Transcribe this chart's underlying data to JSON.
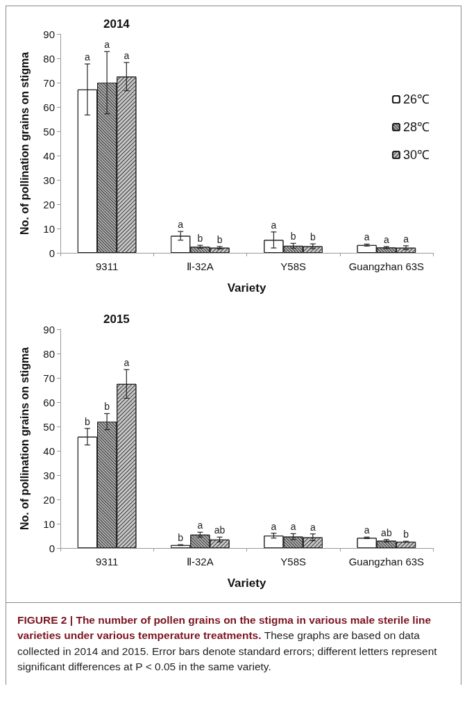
{
  "chart_data": [
    {
      "type": "bar",
      "title": "2014",
      "xlabel": "Variety",
      "ylabel": "No. of pollination grains on stigma",
      "categories": [
        "9311",
        "Ⅱ-32A",
        "Y58S",
        "Guangzhan 63S"
      ],
      "series": [
        {
          "name": "26℃",
          "color": "#ffffff",
          "values": [
            67.2,
            7.0,
            5.3,
            3.2
          ],
          "errors": [
            10.5,
            1.8,
            3.3,
            0.4
          ]
        },
        {
          "name": "28℃",
          "color": "#b0b0b0",
          "values": [
            70.0,
            2.5,
            2.9,
            2.2
          ],
          "errors": [
            12.8,
            0.6,
            1.0,
            0.4
          ]
        },
        {
          "name": "30℃",
          "color": "#c8c8c8",
          "values": [
            72.5,
            2.1,
            2.7,
            2.1
          ],
          "errors": [
            5.8,
            0.5,
            1.0,
            0.8
          ]
        }
      ],
      "ylim": [
        0,
        90
      ],
      "yticks": [
        0,
        10,
        20,
        30,
        40,
        50,
        60,
        70,
        80,
        90
      ],
      "grid": false,
      "legend": "right",
      "annotations": [
        "a",
        "a",
        "a",
        "a",
        "b",
        "b",
        "a",
        "b",
        "b",
        "a",
        "a",
        "a"
      ]
    },
    {
      "type": "bar",
      "title": "2015",
      "xlabel": "Variety",
      "ylabel": "No. of pollination grains on stigma",
      "categories": [
        "9311",
        "Ⅱ-32A",
        "Y58S",
        "Guangzhan 63S"
      ],
      "series": [
        {
          "color": "#ffffff",
          "values": [
            45.8,
            1.2,
            5.1,
            4.2
          ],
          "errors": [
            3.4,
            0.2,
            1.0,
            0.3
          ]
        },
        {
          "color": "#b0b0b0",
          "values": [
            52.0,
            5.5,
            4.7,
            3.0
          ],
          "errors": [
            3.3,
            1.0,
            1.2,
            0.5
          ]
        },
        {
          "color": "#c8c8c8",
          "values": [
            67.5,
            3.5,
            4.4,
            2.6
          ],
          "errors": [
            5.9,
            1.0,
            1.4,
            0.2
          ]
        }
      ],
      "ylim": [
        0,
        90
      ],
      "yticks": [
        0,
        10,
        20,
        30,
        40,
        50,
        60,
        70,
        80,
        90
      ],
      "grid": false,
      "legend": false,
      "annotations": [
        "b",
        "b",
        "a",
        "b",
        "a",
        "ab",
        "a",
        "a",
        "a",
        "a",
        "ab",
        "b",
        "FIGURE 2 | The number of pollen grains on the stigma in various male sterile line varieties under various temperature treatments.",
        "These graphs are based on data collected in 2014 and 2015. Error bars denote standard errors; different letters represent significant differences at P < 0.05 in the same variety."
      ]
    }
  ]
}
